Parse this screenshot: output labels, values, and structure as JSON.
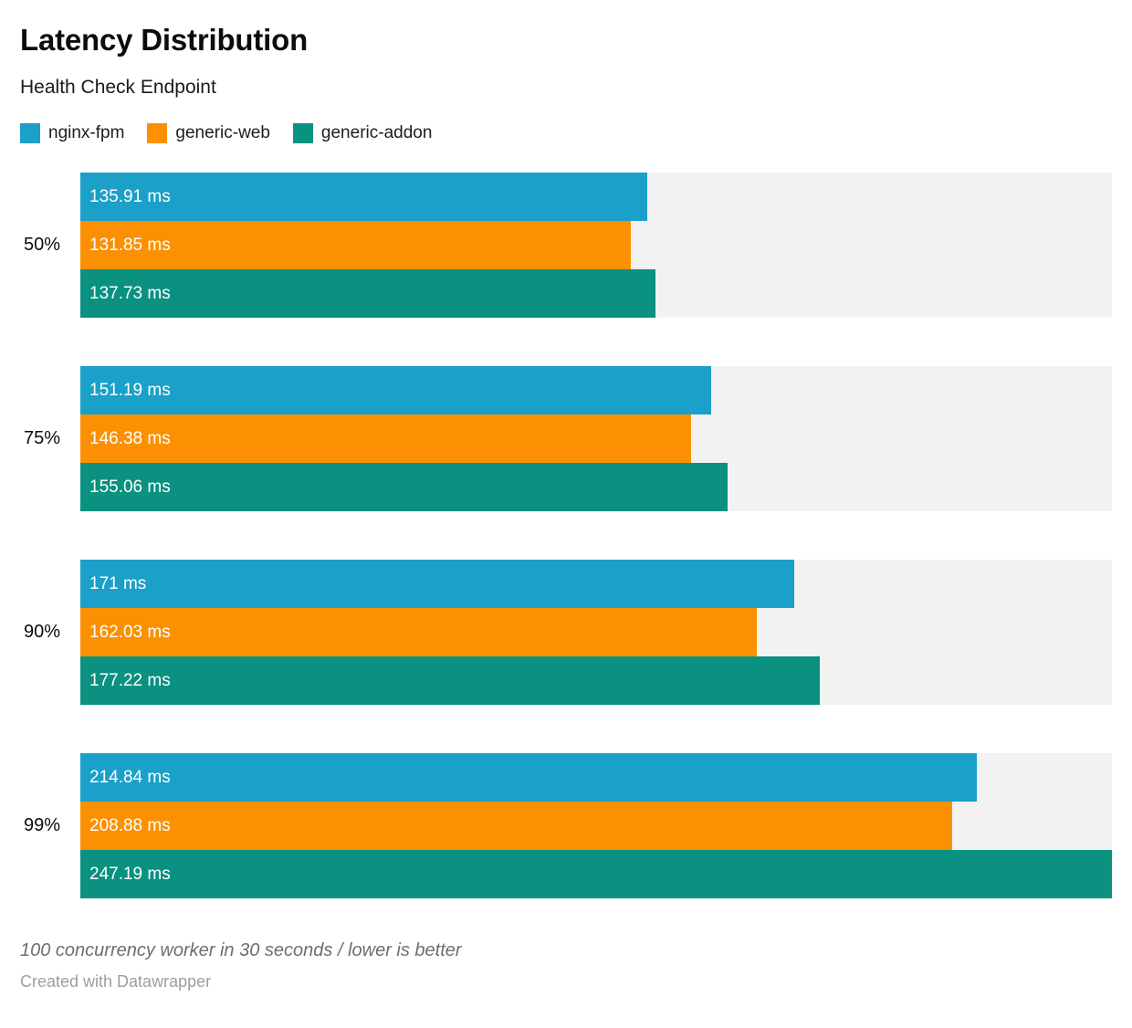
{
  "header": {
    "title": "Latency Distribution",
    "subtitle": "Health Check Endpoint"
  },
  "footer": {
    "note": "100 concurrency worker in 30 seconds / lower is better",
    "byline": "Created with Datawrapper"
  },
  "colors": {
    "track": "#f2f2f2",
    "bar_label_text": "#ffffff"
  },
  "chart_data": {
    "type": "bar",
    "orientation": "horizontal",
    "title": "Latency Distribution",
    "subtitle": "Health Check Endpoint",
    "xlabel": "",
    "ylabel": "",
    "xlim": [
      0,
      247.19
    ],
    "grid": false,
    "legend_position": "top",
    "value_suffix": " ms",
    "categories": [
      "50%",
      "75%",
      "90%",
      "99%"
    ],
    "series": [
      {
        "name": "nginx-fpm",
        "color": "#1ba0c9",
        "values": [
          135.91,
          151.19,
          171,
          214.84
        ]
      },
      {
        "name": "generic-web",
        "color": "#fb9102",
        "values": [
          131.85,
          146.38,
          162.03,
          208.88
        ]
      },
      {
        "name": "generic-addon",
        "color": "#0a917f",
        "values": [
          137.73,
          155.06,
          177.22,
          247.19
        ]
      }
    ],
    "note": "100 concurrency worker in 30 seconds / lower is better",
    "byline": "Created with Datawrapper"
  }
}
